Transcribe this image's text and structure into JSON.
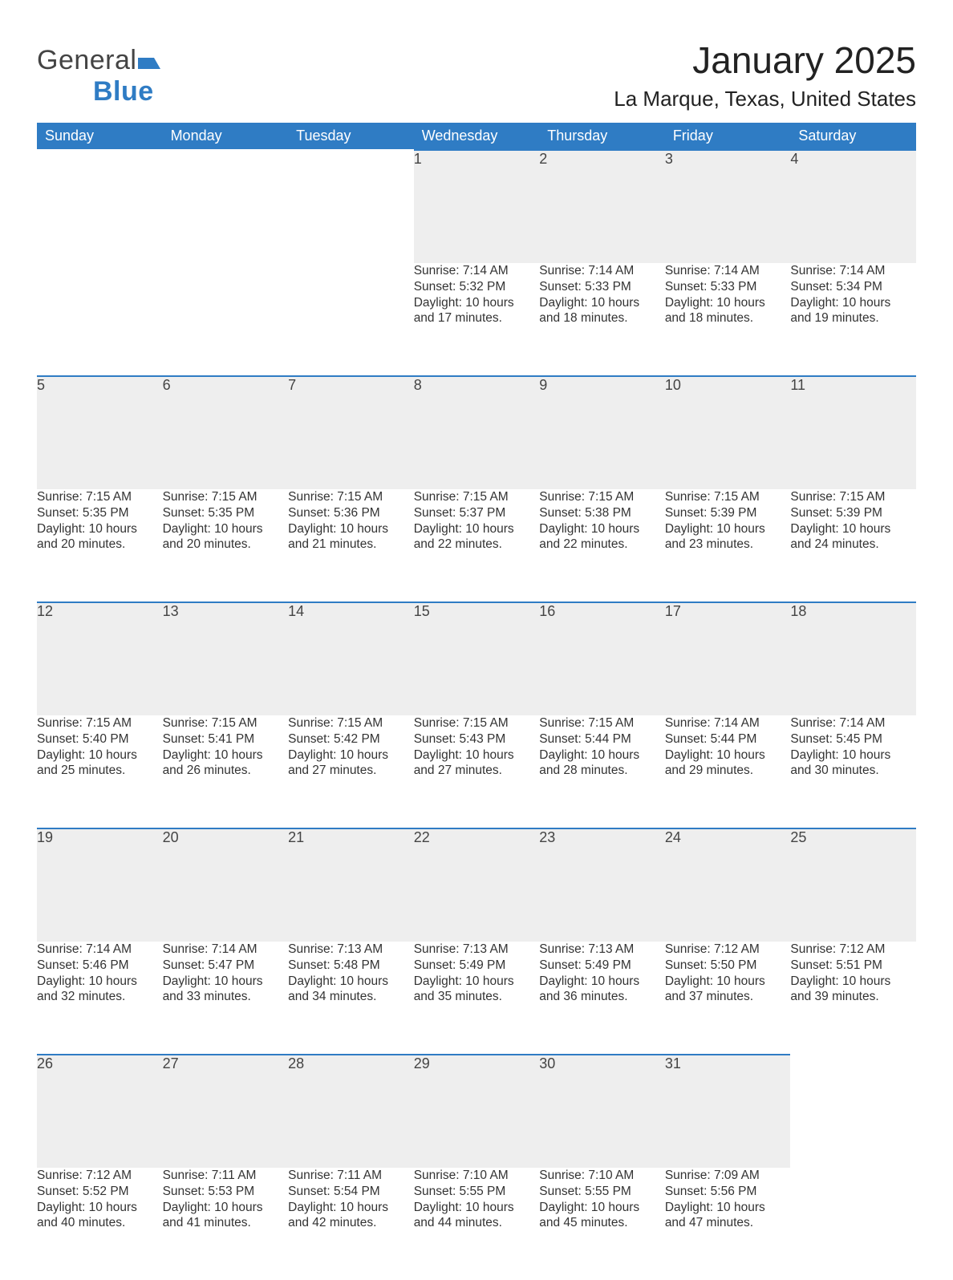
{
  "brand": {
    "part1": "General",
    "part2": "Blue",
    "flag_color": "#2f7cc4"
  },
  "title": "January 2025",
  "location": "La Marque, Texas, United States",
  "weekday_labels": [
    "Sunday",
    "Monday",
    "Tuesday",
    "Wednesday",
    "Thursday",
    "Friday",
    "Saturday"
  ],
  "colors": {
    "header_bg": "#2f7cc4",
    "header_text": "#ffffff",
    "daynum_bg": "#eeeeee",
    "daynum_border": "#2f7cc4",
    "body_text": "#333333"
  },
  "weeks": [
    [
      null,
      null,
      null,
      {
        "n": "1",
        "sunrise": "Sunrise: 7:14 AM",
        "sunset": "Sunset: 5:32 PM",
        "day1": "Daylight: 10 hours",
        "day2": "and 17 minutes."
      },
      {
        "n": "2",
        "sunrise": "Sunrise: 7:14 AM",
        "sunset": "Sunset: 5:33 PM",
        "day1": "Daylight: 10 hours",
        "day2": "and 18 minutes."
      },
      {
        "n": "3",
        "sunrise": "Sunrise: 7:14 AM",
        "sunset": "Sunset: 5:33 PM",
        "day1": "Daylight: 10 hours",
        "day2": "and 18 minutes."
      },
      {
        "n": "4",
        "sunrise": "Sunrise: 7:14 AM",
        "sunset": "Sunset: 5:34 PM",
        "day1": "Daylight: 10 hours",
        "day2": "and 19 minutes."
      }
    ],
    [
      {
        "n": "5",
        "sunrise": "Sunrise: 7:15 AM",
        "sunset": "Sunset: 5:35 PM",
        "day1": "Daylight: 10 hours",
        "day2": "and 20 minutes."
      },
      {
        "n": "6",
        "sunrise": "Sunrise: 7:15 AM",
        "sunset": "Sunset: 5:35 PM",
        "day1": "Daylight: 10 hours",
        "day2": "and 20 minutes."
      },
      {
        "n": "7",
        "sunrise": "Sunrise: 7:15 AM",
        "sunset": "Sunset: 5:36 PM",
        "day1": "Daylight: 10 hours",
        "day2": "and 21 minutes."
      },
      {
        "n": "8",
        "sunrise": "Sunrise: 7:15 AM",
        "sunset": "Sunset: 5:37 PM",
        "day1": "Daylight: 10 hours",
        "day2": "and 22 minutes."
      },
      {
        "n": "9",
        "sunrise": "Sunrise: 7:15 AM",
        "sunset": "Sunset: 5:38 PM",
        "day1": "Daylight: 10 hours",
        "day2": "and 22 minutes."
      },
      {
        "n": "10",
        "sunrise": "Sunrise: 7:15 AM",
        "sunset": "Sunset: 5:39 PM",
        "day1": "Daylight: 10 hours",
        "day2": "and 23 minutes."
      },
      {
        "n": "11",
        "sunrise": "Sunrise: 7:15 AM",
        "sunset": "Sunset: 5:39 PM",
        "day1": "Daylight: 10 hours",
        "day2": "and 24 minutes."
      }
    ],
    [
      {
        "n": "12",
        "sunrise": "Sunrise: 7:15 AM",
        "sunset": "Sunset: 5:40 PM",
        "day1": "Daylight: 10 hours",
        "day2": "and 25 minutes."
      },
      {
        "n": "13",
        "sunrise": "Sunrise: 7:15 AM",
        "sunset": "Sunset: 5:41 PM",
        "day1": "Daylight: 10 hours",
        "day2": "and 26 minutes."
      },
      {
        "n": "14",
        "sunrise": "Sunrise: 7:15 AM",
        "sunset": "Sunset: 5:42 PM",
        "day1": "Daylight: 10 hours",
        "day2": "and 27 minutes."
      },
      {
        "n": "15",
        "sunrise": "Sunrise: 7:15 AM",
        "sunset": "Sunset: 5:43 PM",
        "day1": "Daylight: 10 hours",
        "day2": "and 27 minutes."
      },
      {
        "n": "16",
        "sunrise": "Sunrise: 7:15 AM",
        "sunset": "Sunset: 5:44 PM",
        "day1": "Daylight: 10 hours",
        "day2": "and 28 minutes."
      },
      {
        "n": "17",
        "sunrise": "Sunrise: 7:14 AM",
        "sunset": "Sunset: 5:44 PM",
        "day1": "Daylight: 10 hours",
        "day2": "and 29 minutes."
      },
      {
        "n": "18",
        "sunrise": "Sunrise: 7:14 AM",
        "sunset": "Sunset: 5:45 PM",
        "day1": "Daylight: 10 hours",
        "day2": "and 30 minutes."
      }
    ],
    [
      {
        "n": "19",
        "sunrise": "Sunrise: 7:14 AM",
        "sunset": "Sunset: 5:46 PM",
        "day1": "Daylight: 10 hours",
        "day2": "and 32 minutes."
      },
      {
        "n": "20",
        "sunrise": "Sunrise: 7:14 AM",
        "sunset": "Sunset: 5:47 PM",
        "day1": "Daylight: 10 hours",
        "day2": "and 33 minutes."
      },
      {
        "n": "21",
        "sunrise": "Sunrise: 7:13 AM",
        "sunset": "Sunset: 5:48 PM",
        "day1": "Daylight: 10 hours",
        "day2": "and 34 minutes."
      },
      {
        "n": "22",
        "sunrise": "Sunrise: 7:13 AM",
        "sunset": "Sunset: 5:49 PM",
        "day1": "Daylight: 10 hours",
        "day2": "and 35 minutes."
      },
      {
        "n": "23",
        "sunrise": "Sunrise: 7:13 AM",
        "sunset": "Sunset: 5:49 PM",
        "day1": "Daylight: 10 hours",
        "day2": "and 36 minutes."
      },
      {
        "n": "24",
        "sunrise": "Sunrise: 7:12 AM",
        "sunset": "Sunset: 5:50 PM",
        "day1": "Daylight: 10 hours",
        "day2": "and 37 minutes."
      },
      {
        "n": "25",
        "sunrise": "Sunrise: 7:12 AM",
        "sunset": "Sunset: 5:51 PM",
        "day1": "Daylight: 10 hours",
        "day2": "and 39 minutes."
      }
    ],
    [
      {
        "n": "26",
        "sunrise": "Sunrise: 7:12 AM",
        "sunset": "Sunset: 5:52 PM",
        "day1": "Daylight: 10 hours",
        "day2": "and 40 minutes."
      },
      {
        "n": "27",
        "sunrise": "Sunrise: 7:11 AM",
        "sunset": "Sunset: 5:53 PM",
        "day1": "Daylight: 10 hours",
        "day2": "and 41 minutes."
      },
      {
        "n": "28",
        "sunrise": "Sunrise: 7:11 AM",
        "sunset": "Sunset: 5:54 PM",
        "day1": "Daylight: 10 hours",
        "day2": "and 42 minutes."
      },
      {
        "n": "29",
        "sunrise": "Sunrise: 7:10 AM",
        "sunset": "Sunset: 5:55 PM",
        "day1": "Daylight: 10 hours",
        "day2": "and 44 minutes."
      },
      {
        "n": "30",
        "sunrise": "Sunrise: 7:10 AM",
        "sunset": "Sunset: 5:55 PM",
        "day1": "Daylight: 10 hours",
        "day2": "and 45 minutes."
      },
      {
        "n": "31",
        "sunrise": "Sunrise: 7:09 AM",
        "sunset": "Sunset: 5:56 PM",
        "day1": "Daylight: 10 hours",
        "day2": "and 47 minutes."
      },
      null
    ]
  ]
}
